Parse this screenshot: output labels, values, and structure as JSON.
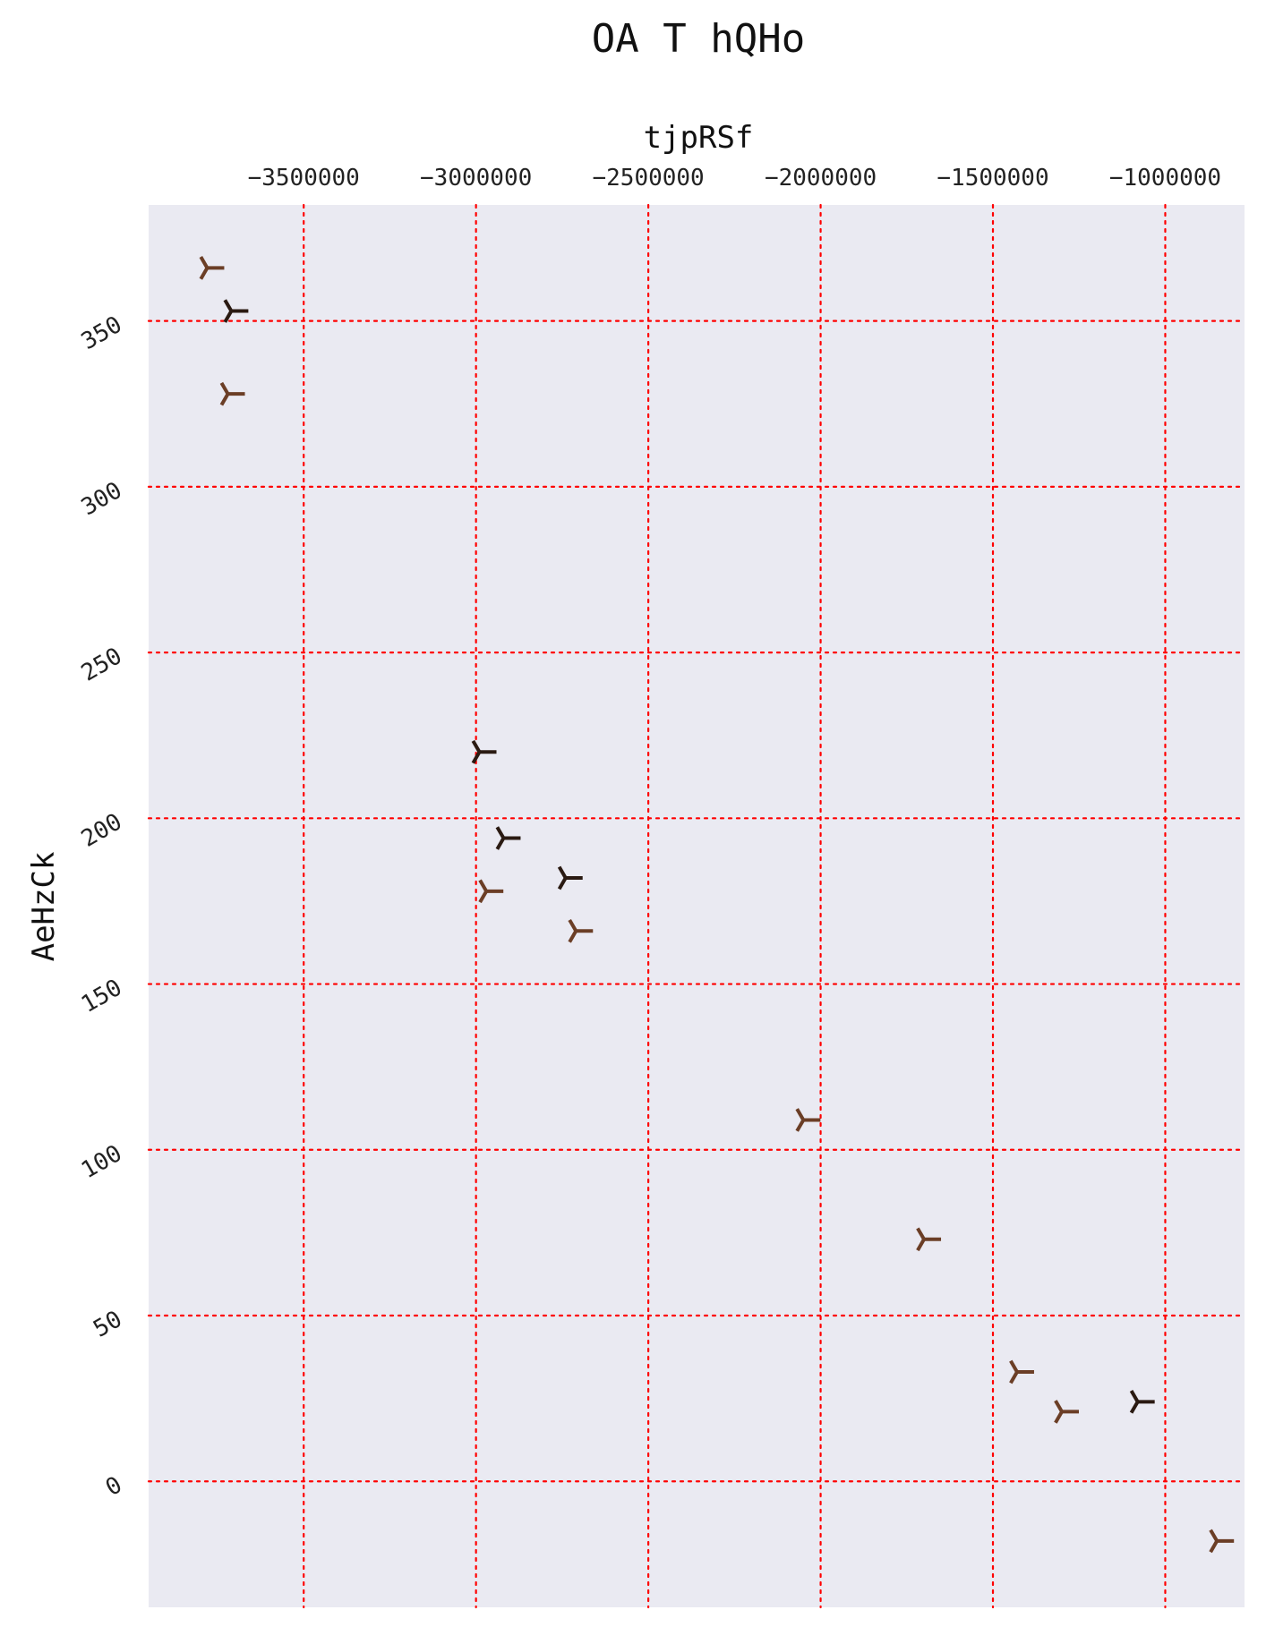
{
  "chart_data": {
    "type": "scatter",
    "title": "OA T hQHo",
    "xlabel": "tjpRSf",
    "ylabel": "AeHzCk",
    "xlim": [
      -3950000,
      -770000
    ],
    "ylim": [
      -38,
      385
    ],
    "x_ticks": [
      -3500000,
      -3000000,
      -2500000,
      -2000000,
      -1500000,
      -1000000
    ],
    "y_ticks": [
      0,
      50,
      100,
      150,
      200,
      250,
      300,
      350
    ],
    "x_axis_position": "top",
    "y_tick_rotation_deg": -30,
    "grid": true,
    "grid_style": "dotted",
    "colors": {
      "background": "#eaeaf2",
      "grid": "#ff0000",
      "marker_light": "#6b3e26",
      "marker_dark": "#2a1a12"
    },
    "marker": "tri_down",
    "series": [
      {
        "color": "#6b3e26",
        "points": [
          [
            -3780000,
            366
          ],
          [
            -3720000,
            328
          ],
          [
            -2970000,
            178
          ],
          [
            -2710000,
            166
          ],
          [
            -2050000,
            109
          ],
          [
            -1700000,
            73
          ],
          [
            -1430000,
            33
          ],
          [
            -1300000,
            21
          ],
          [
            -850000,
            -18
          ]
        ]
      },
      {
        "color": "#2a1a12",
        "points": [
          [
            -3710000,
            353
          ],
          [
            -2990000,
            220
          ],
          [
            -2920000,
            194
          ],
          [
            -2740000,
            182
          ],
          [
            -1080000,
            24
          ]
        ]
      }
    ]
  }
}
